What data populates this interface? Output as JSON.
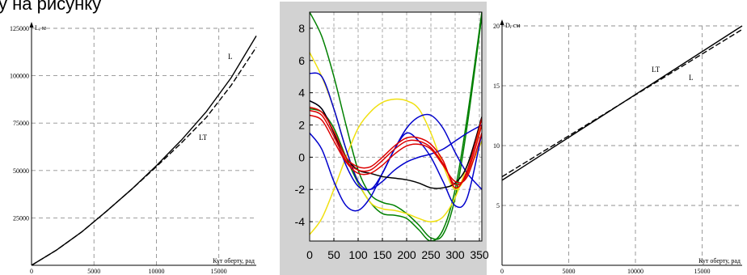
{
  "caption": "у на рисунку",
  "chart_data": [
    {
      "type": "line",
      "ylabel": "L, м",
      "xlabel": "Кут оберту, рад",
      "xlim": [
        0,
        18000
      ],
      "ylim": [
        0,
        125000
      ],
      "xticks": [
        "0",
        "5000",
        "10000",
        "15000"
      ],
      "xtick_values": [
        0,
        5000,
        10000,
        15000
      ],
      "yticks": [
        "25000",
        "50000",
        "75000",
        "100000",
        "125000"
      ],
      "ytick_values": [
        25000,
        50000,
        75000,
        100000,
        125000
      ],
      "grid": true,
      "series": [
        {
          "name": "L",
          "style": "solid",
          "color": "#000000",
          "x": [
            0,
            2000,
            4000,
            6000,
            8000,
            10000,
            12000,
            14000,
            16000,
            18000
          ],
          "y": [
            0,
            8000,
            17500,
            28500,
            40000,
            52500,
            66000,
            81000,
            99000,
            121000
          ]
        },
        {
          "name": "LT",
          "style": "dashed",
          "color": "#000000",
          "x": [
            0,
            2000,
            4000,
            6000,
            8000,
            10000,
            12000,
            14000,
            16000,
            18000
          ],
          "y": [
            0,
            8000,
            17500,
            28500,
            40000,
            52000,
            64500,
            78000,
            95000,
            115000
          ]
        }
      ]
    },
    {
      "type": "line",
      "xlim": [
        0,
        355
      ],
      "ylim": [
        -5.2,
        9
      ],
      "xticks": [
        "0",
        "50",
        "100",
        "150",
        "200",
        "250",
        "300",
        "350"
      ],
      "xtick_values": [
        0,
        50,
        100,
        150,
        200,
        250,
        300,
        350
      ],
      "yticks": [
        "-4",
        "-2",
        "0",
        "2",
        "4",
        "6",
        "8"
      ],
      "ytick_values": [
        -4,
        -2,
        0,
        2,
        4,
        6,
        8
      ],
      "grid": true,
      "series": [
        {
          "color": "#008000",
          "x": [
            0,
            25,
            50,
            75,
            100,
            125,
            150,
            175,
            200,
            225,
            250,
            275,
            300,
            325,
            355
          ],
          "y": [
            9,
            7.5,
            5,
            2,
            -0.8,
            -2.3,
            -2.8,
            -3.0,
            -3.5,
            -4.2,
            -5.0,
            -4.8,
            -2.5,
            2,
            8.8
          ]
        },
        {
          "color": "#008000",
          "x": [
            0,
            25,
            50,
            75,
            100,
            125,
            150,
            175,
            200,
            225,
            250,
            275,
            300,
            325,
            355
          ],
          "y": [
            3.0,
            2.8,
            1.8,
            0.0,
            -1.6,
            -2.8,
            -3.5,
            -3.6,
            -3.8,
            -4.5,
            -5.2,
            -4.5,
            -2.0,
            2.5,
            9.0
          ]
        },
        {
          "color": "#f0e010",
          "x": [
            0,
            25,
            50,
            75,
            100,
            125,
            150,
            175,
            200,
            225,
            250,
            275,
            300,
            325,
            355
          ],
          "y": [
            6.5,
            5.0,
            3.0,
            0.5,
            -1.5,
            -2.8,
            -3.2,
            -3.3,
            -3.5,
            -3.8,
            -4.0,
            -3.7,
            -2.5,
            -0.5,
            2.0
          ]
        },
        {
          "color": "#f0e010",
          "x": [
            0,
            25,
            50,
            75,
            100,
            125,
            150,
            175,
            200,
            225,
            250,
            275,
            300,
            325,
            355
          ],
          "y": [
            -4.8,
            -3.8,
            -2.0,
            0.0,
            1.8,
            2.8,
            3.4,
            3.6,
            3.5,
            3.0,
            1.5,
            -0.5,
            -2.0,
            -1.0,
            1.0
          ]
        },
        {
          "color": "#0000cc",
          "x": [
            0,
            25,
            50,
            75,
            100,
            125,
            150,
            175,
            200,
            225,
            250,
            275,
            300,
            325,
            355
          ],
          "y": [
            5.2,
            5.0,
            3.0,
            0.5,
            -1.5,
            -2.0,
            -1.0,
            0.5,
            1.5,
            1.0,
            0.0,
            -1.5,
            -3.0,
            -2.5,
            1.5
          ]
        },
        {
          "color": "#0000cc",
          "x": [
            0,
            25,
            50,
            75,
            100,
            125,
            150,
            175,
            200,
            225,
            250,
            275,
            300,
            325,
            355
          ],
          "y": [
            1.5,
            0.5,
            -1.5,
            -3.0,
            -3.3,
            -2.5,
            -1.0,
            0.5,
            1.8,
            2.5,
            2.6,
            1.8,
            0.3,
            -1.0,
            -2.0
          ]
        },
        {
          "color": "#0000cc",
          "x": [
            0,
            25,
            50,
            75,
            100,
            125,
            150,
            175,
            200,
            225,
            250,
            275,
            300,
            325,
            355
          ],
          "y": [
            3.5,
            3.0,
            1.5,
            -0.5,
            -1.8,
            -2.0,
            -1.5,
            -0.8,
            -0.3,
            0.0,
            0.2,
            0.5,
            1.0,
            1.5,
            2.0
          ]
        },
        {
          "color": "#000000",
          "x": [
            0,
            25,
            50,
            75,
            100,
            125,
            150,
            175,
            200,
            225,
            250,
            275,
            300,
            325,
            355
          ],
          "y": [
            3.5,
            3.0,
            1.5,
            0.0,
            -0.8,
            -1.0,
            -1.2,
            -1.3,
            -1.4,
            -1.6,
            -1.9,
            -1.9,
            -1.6,
            -0.5,
            2.5
          ]
        },
        {
          "color": "#dd0000",
          "x": [
            0,
            25,
            50,
            75,
            100,
            125,
            150,
            175,
            200,
            225,
            250,
            275,
            300,
            325,
            355
          ],
          "y": [
            2.6,
            2.3,
            1.0,
            -0.3,
            -1.0,
            -1.0,
            -0.5,
            0.2,
            0.7,
            0.8,
            0.5,
            -0.5,
            -1.5,
            -1.2,
            1.5
          ]
        },
        {
          "color": "#dd0000",
          "x": [
            0,
            25,
            50,
            75,
            100,
            125,
            150,
            175,
            200,
            225,
            250,
            275,
            300,
            325,
            355
          ],
          "y": [
            2.9,
            2.6,
            1.3,
            -0.2,
            -0.8,
            -0.8,
            -0.2,
            0.5,
            1.0,
            1.0,
            0.6,
            -0.4,
            -1.7,
            -1.0,
            2.0
          ]
        },
        {
          "color": "#dd0000",
          "x": [
            0,
            25,
            50,
            75,
            100,
            125,
            150,
            175,
            200,
            225,
            250,
            275,
            300,
            325,
            355
          ],
          "y": [
            3.1,
            2.8,
            1.6,
            0.0,
            -0.6,
            -0.6,
            0.0,
            0.7,
            1.2,
            1.2,
            0.8,
            -0.2,
            -1.9,
            -0.8,
            2.4
          ]
        }
      ]
    },
    {
      "type": "line",
      "ylabel": "D, см",
      "xlabel": "Кут оберту, рад",
      "xlim": [
        0,
        18000
      ],
      "ylim": [
        0,
        20
      ],
      "xticks": [
        "0",
        "5000",
        "10000",
        "15000"
      ],
      "xtick_values": [
        0,
        5000,
        10000,
        15000
      ],
      "yticks": [
        "5",
        "10",
        "15",
        "20"
      ],
      "ytick_values": [
        5,
        10,
        15,
        20
      ],
      "grid": true,
      "series": [
        {
          "name": "LT",
          "style": "solid",
          "color": "#000000",
          "x": [
            0,
            18000
          ],
          "y": [
            7.1,
            20
          ]
        },
        {
          "name": "L",
          "style": "dashed",
          "color": "#000000",
          "x": [
            0,
            18000
          ],
          "y": [
            7.4,
            19.7
          ]
        }
      ]
    }
  ]
}
